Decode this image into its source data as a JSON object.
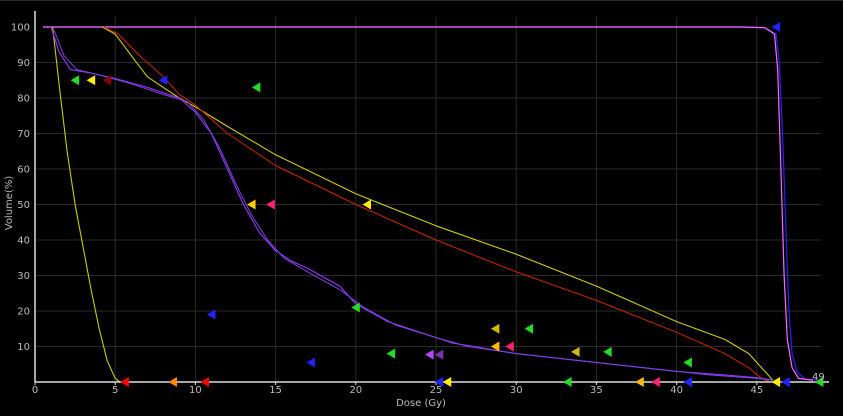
{
  "chart_data": {
    "type": "line",
    "title": "",
    "xlabel": "Dose (Gy)",
    "ylabel": "Volume(%)",
    "xlim": [
      0,
      49
    ],
    "ylim": [
      0,
      100
    ],
    "x_ticks": [
      0,
      5,
      10,
      15,
      20,
      25,
      30,
      35,
      40,
      45
    ],
    "y_ticks": [
      10,
      20,
      30,
      40,
      50,
      60,
      70,
      80,
      90,
      100
    ],
    "x_max_label": "49",
    "grid": true,
    "series": [
      {
        "color": "#2222ff",
        "width": 1.2,
        "points": [
          [
            0.5,
            100
          ],
          [
            44,
            100
          ],
          [
            45.5,
            99.8
          ],
          [
            46.2,
            98
          ],
          [
            46.4,
            90
          ],
          [
            46.6,
            70
          ],
          [
            46.8,
            45
          ],
          [
            47,
            20
          ],
          [
            47.2,
            8
          ],
          [
            47.5,
            3
          ],
          [
            48,
            0.8
          ],
          [
            49,
            0.5
          ]
        ]
      },
      {
        "color": "#ff66ff",
        "width": 1.2,
        "points": [
          [
            0.5,
            100
          ],
          [
            44,
            100
          ],
          [
            45.5,
            99.8
          ],
          [
            46.1,
            98
          ],
          [
            46.3,
            88
          ],
          [
            46.5,
            60
          ],
          [
            46.7,
            30
          ],
          [
            46.9,
            12
          ],
          [
            47.2,
            4
          ],
          [
            47.6,
            1
          ],
          [
            48.5,
            0.5
          ]
        ]
      },
      {
        "color": "#cccc00",
        "width": 1.1,
        "points": [
          [
            1.1,
            100
          ],
          [
            1.6,
            80
          ],
          [
            2,
            65
          ],
          [
            2.5,
            50
          ],
          [
            3,
            38
          ],
          [
            3.5,
            26
          ],
          [
            4,
            15
          ],
          [
            4.5,
            6
          ],
          [
            5,
            1
          ],
          [
            5.3,
            0
          ]
        ]
      },
      {
        "color": "#cccc00",
        "width": 1.1,
        "points": [
          [
            4.2,
            100
          ],
          [
            5,
            98
          ],
          [
            6,
            92
          ],
          [
            7,
            86
          ],
          [
            8,
            83
          ],
          [
            9,
            80
          ],
          [
            10,
            77.5
          ],
          [
            12,
            72
          ],
          [
            15,
            64
          ],
          [
            20,
            53
          ],
          [
            25,
            44
          ],
          [
            30,
            36
          ],
          [
            35,
            27
          ],
          [
            40,
            17
          ],
          [
            43,
            12
          ],
          [
            44.5,
            8
          ],
          [
            45.5,
            3
          ],
          [
            46,
            0.5
          ]
        ]
      },
      {
        "color": "#cc2200",
        "width": 1.0,
        "points": [
          [
            4.3,
            100
          ],
          [
            5.2,
            98
          ],
          [
            6.5,
            92
          ],
          [
            8,
            86
          ],
          [
            9,
            81
          ],
          [
            10,
            78
          ],
          [
            12,
            70
          ],
          [
            15,
            61
          ],
          [
            20,
            50
          ],
          [
            25,
            40
          ],
          [
            30,
            31
          ],
          [
            35,
            23
          ],
          [
            40,
            14
          ],
          [
            43,
            8
          ],
          [
            44.5,
            4
          ],
          [
            45.3,
            1
          ],
          [
            45.8,
            0
          ]
        ]
      },
      {
        "color": "#9933ff",
        "width": 1.1,
        "points": [
          [
            1.0,
            100
          ],
          [
            1.5,
            93
          ],
          [
            2.2,
            88
          ],
          [
            3.5,
            87
          ],
          [
            5,
            85.5
          ],
          [
            7,
            83
          ],
          [
            9,
            80
          ],
          [
            10,
            76
          ],
          [
            11,
            70
          ],
          [
            12,
            60
          ],
          [
            13,
            50
          ],
          [
            14,
            42
          ],
          [
            15,
            37
          ],
          [
            16,
            34
          ],
          [
            17,
            32
          ],
          [
            19,
            27
          ],
          [
            20,
            22
          ],
          [
            22,
            17
          ],
          [
            24,
            14
          ],
          [
            26,
            11
          ],
          [
            28,
            9.5
          ],
          [
            30,
            8
          ],
          [
            33,
            6.5
          ],
          [
            36,
            5
          ],
          [
            40,
            3
          ],
          [
            43,
            2
          ],
          [
            45,
            1.2
          ],
          [
            46,
            0.5
          ]
        ]
      },
      {
        "color": "#7744dd",
        "width": 1.0,
        "points": [
          [
            1.2,
            99
          ],
          [
            1.8,
            92
          ],
          [
            2.6,
            88
          ],
          [
            4,
            86.5
          ],
          [
            6,
            84
          ],
          [
            8,
            81
          ],
          [
            9.5,
            79
          ],
          [
            10.5,
            74
          ],
          [
            11.5,
            66
          ],
          [
            12.5,
            56
          ],
          [
            13.5,
            47
          ],
          [
            14.5,
            40
          ],
          [
            15.5,
            35
          ],
          [
            17,
            31
          ],
          [
            19,
            26
          ],
          [
            20.5,
            21
          ],
          [
            22.5,
            16
          ],
          [
            25,
            12.5
          ],
          [
            27,
            10
          ],
          [
            30,
            8
          ],
          [
            34,
            6
          ],
          [
            38,
            4
          ],
          [
            42,
            2
          ],
          [
            45,
            1
          ],
          [
            46,
            0.5
          ]
        ]
      }
    ],
    "markers": [
      {
        "x": 2.5,
        "y": 85,
        "color": "#22dd22"
      },
      {
        "x": 3.5,
        "y": 85,
        "color": "#ffee00"
      },
      {
        "x": 4.5,
        "y": 85,
        "color": "#8b0000"
      },
      {
        "x": 8.0,
        "y": 85,
        "color": "#2222ff"
      },
      {
        "x": 13.8,
        "y": 83,
        "color": "#22dd22"
      },
      {
        "x": 13.5,
        "y": 50,
        "color": "#ffcc00"
      },
      {
        "x": 14.7,
        "y": 50,
        "color": "#ff2277"
      },
      {
        "x": 20.7,
        "y": 50,
        "color": "#ffee00"
      },
      {
        "x": 11.0,
        "y": 19,
        "color": "#2222ff"
      },
      {
        "x": 17.2,
        "y": 5.5,
        "color": "#2222ff"
      },
      {
        "x": 20.0,
        "y": 21,
        "color": "#22dd22"
      },
      {
        "x": 22.2,
        "y": 8,
        "color": "#22dd22"
      },
      {
        "x": 24.6,
        "y": 7.7,
        "color": "#bb44ff"
      },
      {
        "x": 25.2,
        "y": 7.7,
        "color": "#7733aa"
      },
      {
        "x": 28.7,
        "y": 15,
        "color": "#ccbb00"
      },
      {
        "x": 30.8,
        "y": 15,
        "color": "#22dd22"
      },
      {
        "x": 28.7,
        "y": 10,
        "color": "#ffbb00"
      },
      {
        "x": 29.6,
        "y": 10,
        "color": "#ff2277"
      },
      {
        "x": 33.7,
        "y": 8.5,
        "color": "#ccbb00"
      },
      {
        "x": 35.7,
        "y": 8.5,
        "color": "#22dd22"
      },
      {
        "x": 40.7,
        "y": 5.5,
        "color": "#22dd22"
      },
      {
        "x": 46.2,
        "y": 100,
        "color": "#2222ff"
      },
      {
        "x": 5.6,
        "y": 0,
        "color": "#ff0000"
      },
      {
        "x": 8.6,
        "y": 0,
        "color": "#ff8800"
      },
      {
        "x": 10.6,
        "y": 0,
        "color": "#ff0000"
      },
      {
        "x": 25.2,
        "y": 0,
        "color": "#2222ff"
      },
      {
        "x": 25.7,
        "y": 0,
        "color": "#ffee00"
      },
      {
        "x": 33.2,
        "y": 0,
        "color": "#22dd22"
      },
      {
        "x": 37.7,
        "y": 0,
        "color": "#ffbb00"
      },
      {
        "x": 38.7,
        "y": 0,
        "color": "#ff2277"
      },
      {
        "x": 40.7,
        "y": 0,
        "color": "#2222ff"
      },
      {
        "x": 46.2,
        "y": 0,
        "color": "#ffee00"
      },
      {
        "x": 46.8,
        "y": 0,
        "color": "#2222ff"
      },
      {
        "x": 48.9,
        "y": 0,
        "color": "#22dd22"
      }
    ]
  },
  "colors": {
    "background": "#000000",
    "axis": "#dddddd",
    "grid": "#2a2a2a",
    "text": "#bbbbbb"
  }
}
